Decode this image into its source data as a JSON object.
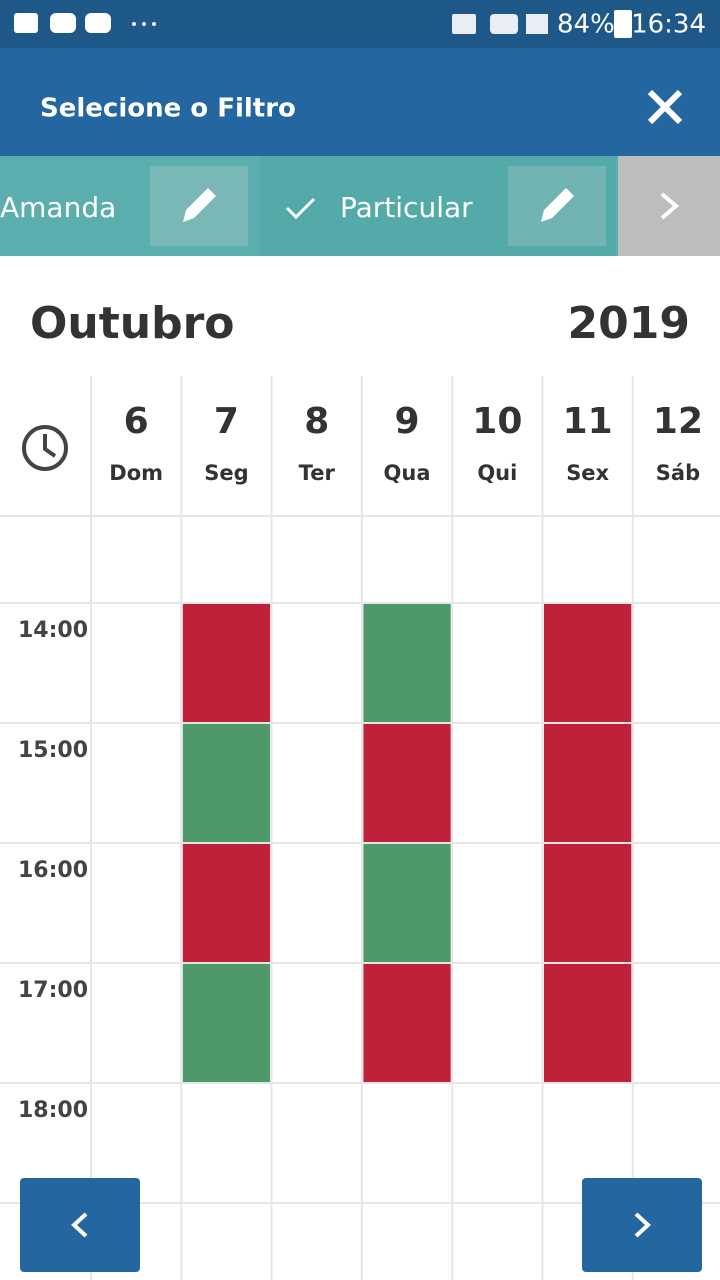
{
  "status_bar": {
    "battery": "84%",
    "time": "16:34"
  },
  "header": {
    "title": "Selecione o Filtro"
  },
  "filters": [
    {
      "label": "Amanda"
    },
    {
      "label": "Particular"
    }
  ],
  "calendar": {
    "month": "Outubro",
    "year": "2019",
    "days": [
      {
        "number": 6,
        "name": "Dom"
      },
      {
        "number": 7,
        "name": "Seg"
      },
      {
        "number": 8,
        "name": "Ter"
      },
      {
        "number": 9,
        "name": "Qua"
      },
      {
        "number": 10,
        "name": "Qui"
      },
      {
        "number": 11,
        "name": "Sex"
      },
      {
        "number": 12,
        "name": "Sáb"
      }
    ],
    "rows": [
      {
        "time": "14:00",
        "cells": [
          null,
          "#c0213a",
          null,
          "#4e986a",
          null,
          "#c0213a",
          null
        ]
      },
      {
        "time": "15:00",
        "cells": [
          null,
          "#4e986a",
          null,
          "#c0213a",
          null,
          "#c0213a",
          null
        ]
      },
      {
        "time": "16:00",
        "cells": [
          null,
          "#c0213a",
          null,
          "#4e986a",
          null,
          "#c0213a",
          null
        ]
      },
      {
        "time": "17:00",
        "cells": [
          null,
          "#4e986a",
          null,
          "#c0213a",
          null,
          "#c0213a",
          null
        ]
      },
      {
        "time": "18:00",
        "cells": [
          null,
          null,
          null,
          null,
          null,
          null,
          null
        ]
      }
    ]
  }
}
